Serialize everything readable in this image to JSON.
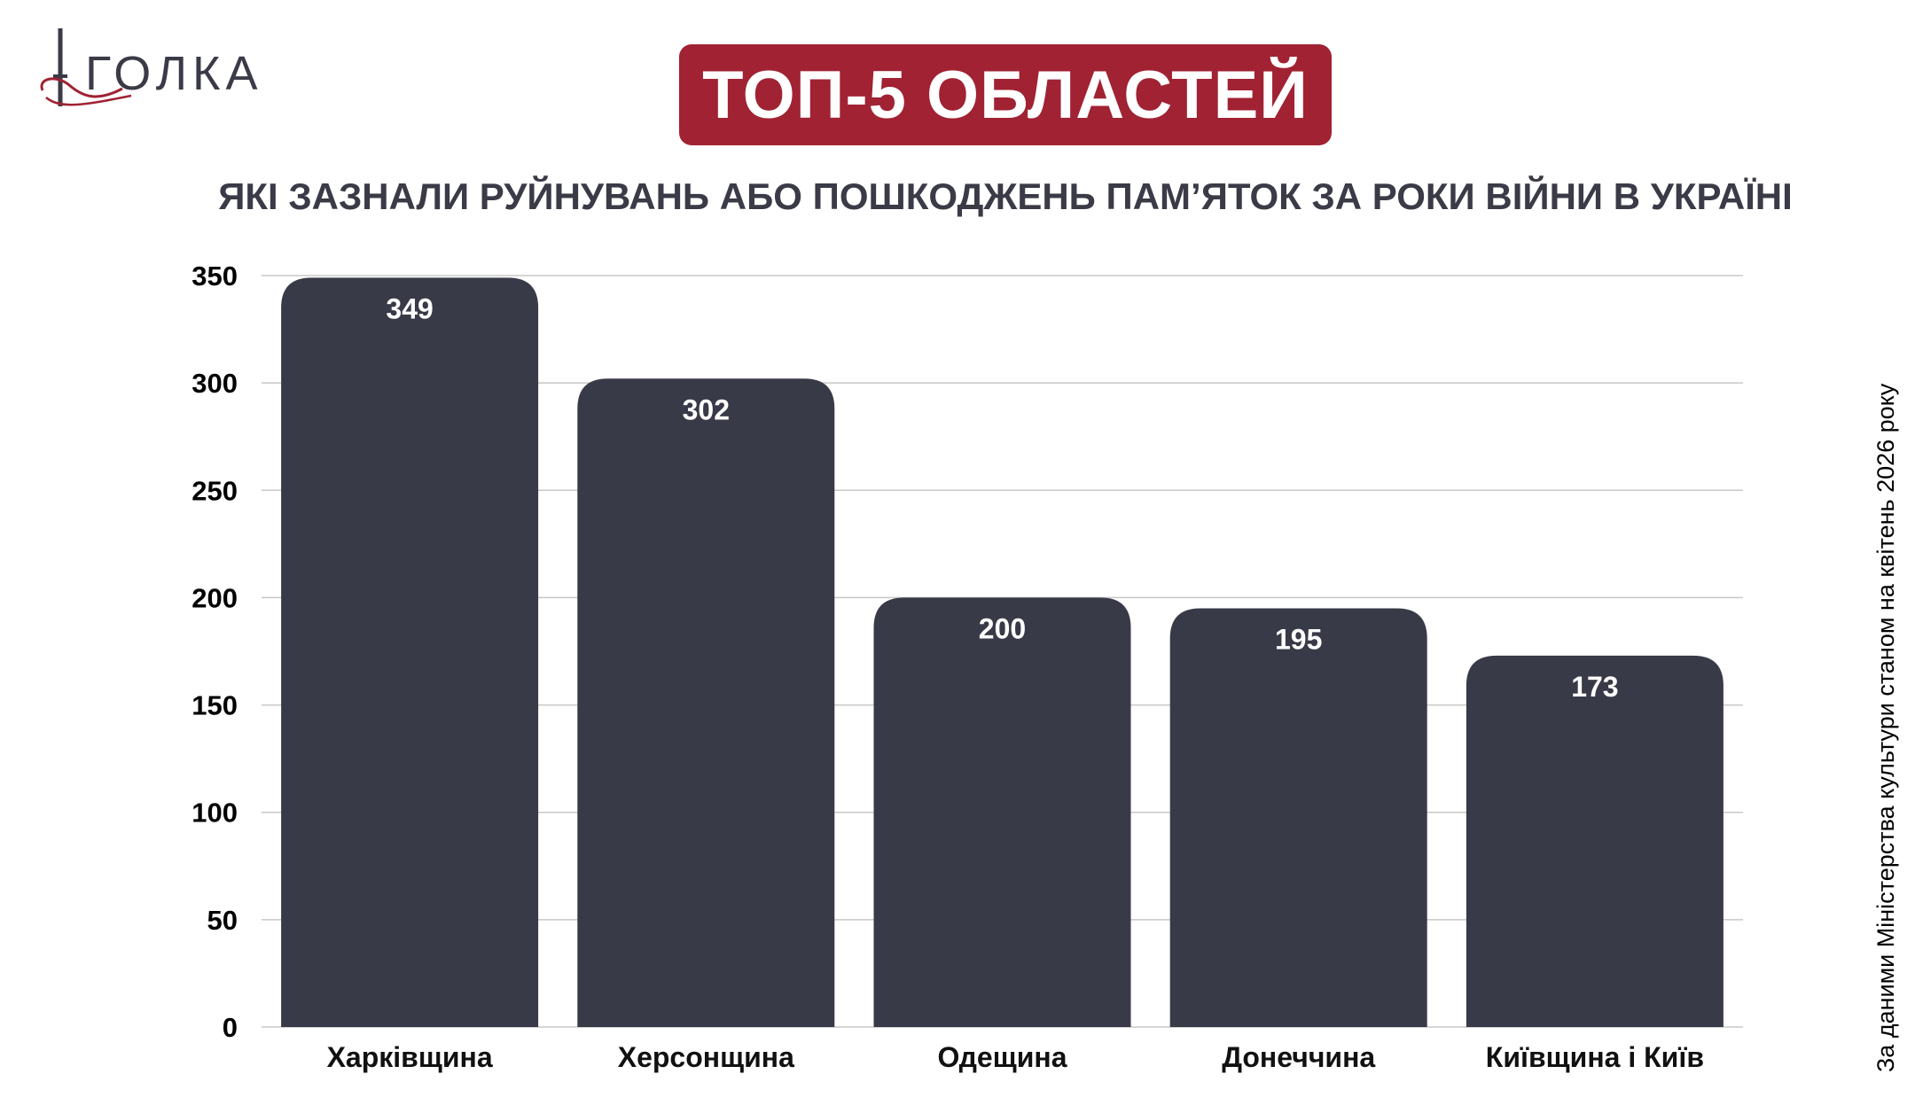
{
  "logo": {
    "text": "ГОЛКА"
  },
  "title": "ТОП-5 ОБЛАСТЕЙ",
  "subtitle": "ЯКІ ЗАЗНАЛИ РУЙНУВАНЬ АБО ПОШКОДЖЕНЬ ПАМ’ЯТОК ЗА РОКИ ВІЙНИ В УКРАЇНІ",
  "source": "За даними Міністерства культури станом на квітень 2026 року",
  "colors": {
    "accent": "#a02233",
    "bar": "#393a47",
    "text_dark": "#3a3b47",
    "grid": "#c8c8c8"
  },
  "chart_data": {
    "type": "bar",
    "categories": [
      "Харківщина",
      "Херсонщина",
      "Одещина",
      "Донеччина",
      "Київщина і Київ"
    ],
    "values": [
      349,
      302,
      200,
      195,
      173
    ],
    "data_labels": [
      "349",
      "302",
      "200",
      "195",
      "173"
    ],
    "yticks": [
      0,
      50,
      100,
      150,
      200,
      250,
      300,
      350
    ],
    "ylim": [
      0,
      350
    ],
    "grid": true,
    "legend": "none"
  }
}
